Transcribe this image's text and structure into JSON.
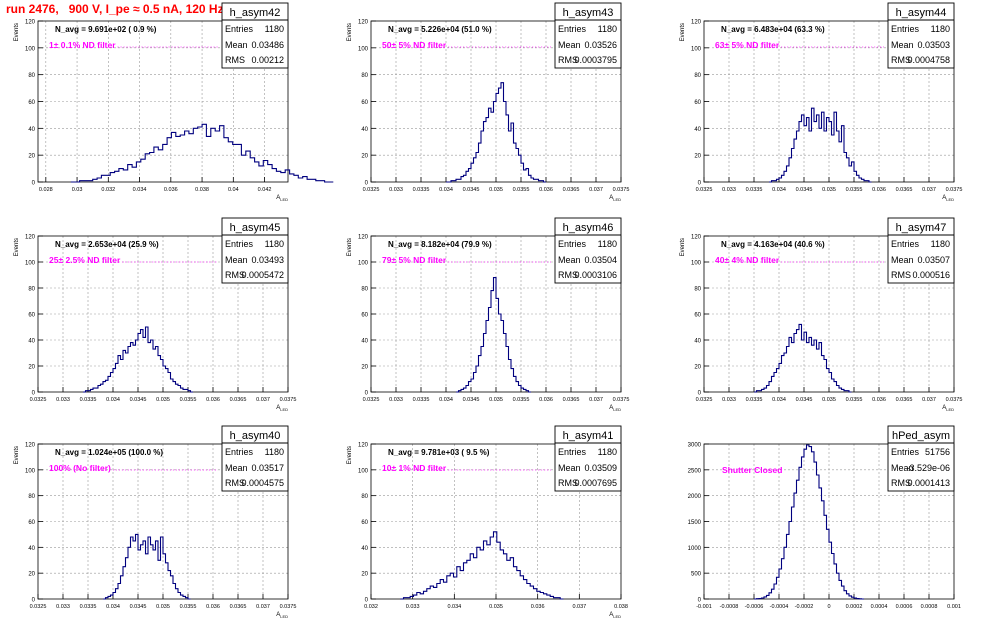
{
  "title": "run 2476,   900 V, I_pe ≈ 0.5 nA, 120 Hz",
  "colors": {
    "title": "#ff0000",
    "annotation": "#ff00ff",
    "line": "#00007f",
    "grid": "#999999"
  },
  "chart_data": [
    {
      "type": "bar",
      "name": "h_asym42",
      "stats": {
        "entries": "1180",
        "mean": "0.03486",
        "rms": "0.00212"
      },
      "n_avg": "N_avg = 9.691e+02 ( 0.9 %)",
      "annotation": "1± 0.1% ND filter",
      "ylabel": "Events",
      "xlabel": "A_LED",
      "xlim": [
        0.0275,
        0.0435
      ],
      "ylim": [
        0,
        120
      ],
      "xticks": [
        "0.028",
        "0.03",
        "0.032",
        "0.034",
        "0.036",
        "0.038",
        "0.04",
        "0.042"
      ],
      "xtick_values": [
        0.028,
        0.03,
        0.032,
        0.034,
        0.036,
        0.038,
        0.04,
        0.042
      ],
      "yticks": [
        0,
        20,
        40,
        60,
        80,
        100,
        120
      ],
      "x_start": 0.0296,
      "bin_width": 0.00028,
      "values": [
        0,
        0,
        1,
        1,
        1,
        2,
        3,
        5,
        5,
        7,
        8,
        10,
        9,
        13,
        11,
        15,
        17,
        21,
        22,
        26,
        24,
        28,
        33,
        37,
        34,
        35,
        38,
        36,
        40,
        41,
        43,
        34,
        40,
        38,
        42,
        33,
        30,
        28,
        28,
        20,
        23,
        18,
        15,
        12,
        16,
        13,
        10,
        8,
        7,
        9,
        6,
        5,
        3,
        4,
        2,
        2,
        1,
        1,
        0,
        0
      ]
    },
    {
      "type": "bar",
      "name": "h_asym43",
      "stats": {
        "entries": "1180",
        "mean": "0.03526",
        "rms": "0.0003795"
      },
      "n_avg": "N_avg = 5.226e+04 (51.0 %)",
      "annotation": "50± 5% ND filter",
      "ylabel": "Events",
      "xlabel": "A_LED",
      "xlim": [
        0.0325,
        0.0375
      ],
      "ylim": [
        0,
        120
      ],
      "xticks": [
        "0.0325",
        "0.033",
        "0.0335",
        "0.034",
        "0.0345",
        "0.035",
        "0.0355",
        "0.036",
        "0.0365",
        "0.037",
        "0.0375"
      ],
      "xtick_values": [
        0.0325,
        0.033,
        0.0335,
        0.034,
        0.0345,
        0.035,
        0.0355,
        0.036,
        0.0365,
        0.037,
        0.0375
      ],
      "yticks": [
        0,
        20,
        40,
        60,
        80,
        100,
        120
      ],
      "x_start": 0.034,
      "bin_width": 5e-05,
      "values": [
        0,
        0,
        1,
        1,
        2,
        2,
        4,
        5,
        8,
        10,
        14,
        18,
        22,
        29,
        38,
        45,
        48,
        55,
        52,
        60,
        66,
        70,
        74,
        60,
        50,
        38,
        44,
        29,
        25,
        20,
        14,
        9,
        10,
        5,
        3,
        2,
        2,
        1,
        1,
        0
      ]
    },
    {
      "type": "bar",
      "name": "h_asym44",
      "stats": {
        "entries": "1180",
        "mean": "0.03503",
        "rms": "0.0004758"
      },
      "n_avg": "N_avg = 6.483e+04 (63.3 %)",
      "annotation": "63± 5% ND filter",
      "ylabel": "Events",
      "xlabel": "A_LED",
      "xlim": [
        0.0325,
        0.0375
      ],
      "ylim": [
        0,
        120
      ],
      "xticks": [
        "0.0325",
        "0.033",
        "0.0335",
        "0.034",
        "0.0345",
        "0.035",
        "0.0355",
        "0.036",
        "0.0365",
        "0.037",
        "0.0375"
      ],
      "xtick_values": [
        0.0325,
        0.033,
        0.0335,
        0.034,
        0.0345,
        0.035,
        0.0355,
        0.036,
        0.0365,
        0.037,
        0.0375
      ],
      "yticks": [
        0,
        20,
        40,
        60,
        80,
        100,
        120
      ],
      "x_start": 0.0338,
      "bin_width": 5e-05,
      "values": [
        0,
        1,
        1,
        2,
        3,
        5,
        8,
        12,
        18,
        25,
        32,
        38,
        45,
        50,
        42,
        48,
        38,
        55,
        45,
        50,
        40,
        52,
        38,
        48,
        45,
        35,
        52,
        38,
        30,
        42,
        22,
        18,
        12,
        15,
        8,
        5,
        3,
        2,
        1,
        1,
        0
      ]
    },
    {
      "type": "bar",
      "name": "h_asym45",
      "stats": {
        "entries": "1180",
        "mean": "0.03493",
        "rms": "0.0005472"
      },
      "n_avg": "N_avg = 2.653e+04 (25.9 %)",
      "annotation": "25± 2.5% ND filter",
      "ylabel": "Events",
      "xlabel": "A_LED",
      "xlim": [
        0.0325,
        0.0375
      ],
      "ylim": [
        0,
        120
      ],
      "xticks": [
        "0.0325",
        "0.033",
        "0.0335",
        "0.034",
        "0.0345",
        "0.035",
        "0.0355",
        "0.036",
        "0.0365",
        "0.037",
        "0.0375"
      ],
      "xtick_values": [
        0.0325,
        0.033,
        0.0335,
        0.034,
        0.0345,
        0.035,
        0.0355,
        0.036,
        0.0365,
        0.037,
        0.0375
      ],
      "yticks": [
        0,
        20,
        40,
        60,
        80,
        100,
        120
      ],
      "x_start": 0.0334,
      "bin_width": 5e-05,
      "values": [
        0,
        1,
        1,
        2,
        3,
        3,
        5,
        6,
        8,
        9,
        12,
        15,
        18,
        22,
        28,
        25,
        32,
        30,
        35,
        38,
        36,
        40,
        45,
        48,
        42,
        50,
        38,
        40,
        33,
        35,
        28,
        25,
        20,
        18,
        15,
        10,
        8,
        6,
        5,
        3,
        2,
        2,
        1,
        0
      ]
    },
    {
      "type": "bar",
      "name": "h_asym46",
      "stats": {
        "entries": "1180",
        "mean": "0.03504",
        "rms": "0.0003106"
      },
      "n_avg": "N_avg = 8.182e+04 (79.9 %)",
      "annotation": "79± 5% ND filter",
      "ylabel": "Events",
      "xlabel": "A_LED",
      "xlim": [
        0.0325,
        0.0375
      ],
      "ylim": [
        0,
        120
      ],
      "xticks": [
        "0.0325",
        "0.033",
        "0.0335",
        "0.034",
        "0.0345",
        "0.035",
        "0.0355",
        "0.036",
        "0.0365",
        "0.037",
        "0.0375"
      ],
      "xtick_values": [
        0.0325,
        0.033,
        0.0335,
        0.034,
        0.0345,
        0.035,
        0.0355,
        0.036,
        0.0365,
        0.037,
        0.0375
      ],
      "yticks": [
        0,
        20,
        40,
        60,
        80,
        100,
        120
      ],
      "x_start": 0.0342,
      "bin_width": 5e-05,
      "values": [
        0,
        1,
        2,
        3,
        5,
        8,
        10,
        15,
        20,
        28,
        35,
        45,
        55,
        65,
        78,
        88,
        72,
        60,
        55,
        45,
        35,
        25,
        18,
        12,
        8,
        5,
        3,
        2,
        1,
        0
      ]
    },
    {
      "type": "bar",
      "name": "h_asym47",
      "stats": {
        "entries": "1180",
        "mean": "0.03507",
        "rms": "0.000516"
      },
      "n_avg": "N_avg = 4.163e+04 (40.6 %)",
      "annotation": "40± 4% ND filter",
      "ylabel": "Events",
      "xlabel": "A_LED",
      "xlim": [
        0.0325,
        0.0375
      ],
      "ylim": [
        0,
        120
      ],
      "xticks": [
        "0.0325",
        "0.033",
        "0.0335",
        "0.034",
        "0.0345",
        "0.035",
        "0.0355",
        "0.036",
        "0.0365",
        "0.037",
        "0.0375"
      ],
      "xtick_values": [
        0.0325,
        0.033,
        0.0335,
        0.034,
        0.0345,
        0.035,
        0.0355,
        0.036,
        0.0365,
        0.037,
        0.0375
      ],
      "yticks": [
        0,
        20,
        40,
        60,
        80,
        100,
        120
      ],
      "x_start": 0.0335,
      "bin_width": 5e-05,
      "values": [
        0,
        1,
        1,
        2,
        3,
        5,
        8,
        12,
        15,
        18,
        22,
        28,
        30,
        35,
        42,
        38,
        45,
        48,
        52,
        40,
        46,
        38,
        42,
        36,
        40,
        33,
        38,
        28,
        25,
        18,
        15,
        10,
        8,
        5,
        3,
        2,
        1,
        1,
        0
      ]
    },
    {
      "type": "bar",
      "name": "h_asym40",
      "stats": {
        "entries": "1180",
        "mean": "0.03517",
        "rms": "0.0004575"
      },
      "n_avg": "N_avg = 1.024e+05 (100.0 %)",
      "annotation": "100% (No filter)",
      "ylabel": "Events",
      "xlabel": "A_LED",
      "xlim": [
        0.0325,
        0.0375
      ],
      "ylim": [
        0,
        120
      ],
      "xticks": [
        "0.0325",
        "0.033",
        "0.0335",
        "0.034",
        "0.0345",
        "0.035",
        "0.0355",
        "0.036",
        "0.0365",
        "0.037",
        "0.0375"
      ],
      "xtick_values": [
        0.0325,
        0.033,
        0.0335,
        0.034,
        0.0345,
        0.035,
        0.0355,
        0.036,
        0.0365,
        0.037,
        0.0375
      ],
      "yticks": [
        0,
        20,
        40,
        60,
        80,
        100,
        120
      ],
      "x_start": 0.0338,
      "bin_width": 5e-05,
      "values": [
        0,
        1,
        2,
        3,
        5,
        8,
        12,
        18,
        25,
        32,
        40,
        48,
        45,
        50,
        38,
        42,
        45,
        35,
        48,
        42,
        38,
        45,
        30,
        48,
        35,
        28,
        22,
        18,
        12,
        8,
        5,
        3,
        2,
        1,
        0
      ]
    },
    {
      "type": "bar",
      "name": "h_asym41",
      "stats": {
        "entries": "1180",
        "mean": "0.03509",
        "rms": "0.0007695"
      },
      "n_avg": "N_avg = 9.781e+03 ( 9.5 %)",
      "annotation": "10± 1% ND filter",
      "ylabel": "Events",
      "xlabel": "A_LED",
      "xlim": [
        0.032,
        0.038
      ],
      "ylim": [
        0,
        120
      ],
      "xticks": [
        "0.032",
        "0.033",
        "0.034",
        "0.035",
        "0.036",
        "0.037",
        "0.038"
      ],
      "xtick_values": [
        0.032,
        0.033,
        0.034,
        0.035,
        0.036,
        0.037,
        0.038
      ],
      "yticks": [
        0,
        20,
        40,
        60,
        80,
        100,
        120
      ],
      "x_start": 0.0327,
      "bin_width": 8e-05,
      "values": [
        0,
        1,
        1,
        2,
        3,
        5,
        4,
        6,
        8,
        10,
        9,
        12,
        15,
        13,
        18,
        20,
        17,
        25,
        22,
        28,
        30,
        35,
        32,
        40,
        38,
        45,
        42,
        48,
        52,
        44,
        38,
        35,
        30,
        32,
        25,
        22,
        18,
        15,
        12,
        10,
        8,
        6,
        5,
        4,
        3,
        2,
        1,
        1,
        0
      ]
    },
    {
      "type": "bar",
      "name": "hPed_asym",
      "stats": {
        "entries": "51756",
        "mean": "-3.529e-06",
        "rms": "0.0001413"
      },
      "n_avg": "",
      "annotation": "Shutter Closed",
      "ylabel": "",
      "xlabel": "",
      "xlim": [
        -0.001,
        0.001
      ],
      "ylim": [
        0,
        3000
      ],
      "xticks": [
        "-0.001",
        "-0.0008",
        "-0.0006",
        "-0.0004",
        "-0.0002",
        "0",
        "0.0002",
        "0.0004",
        "0.0006",
        "0.0008",
        "0.001"
      ],
      "xtick_values": [
        -0.001,
        -0.0008,
        -0.0006,
        -0.0004,
        -0.0002,
        0,
        0.0002,
        0.0004,
        0.0006,
        0.0008,
        0.001
      ],
      "yticks": [
        0,
        500,
        1000,
        1500,
        2000,
        2500,
        3000
      ],
      "x_start": -0.0006,
      "bin_width": 2e-05,
      "values": [
        0,
        5,
        10,
        20,
        40,
        70,
        120,
        190,
        290,
        420,
        580,
        780,
        1000,
        1250,
        1500,
        1780,
        2050,
        2300,
        2550,
        2750,
        2900,
        2980,
        2950,
        2850,
        2650,
        2400,
        2150,
        1900,
        1620,
        1350,
        1100,
        880,
        680,
        500,
        360,
        250,
        160,
        100,
        60,
        35,
        18,
        8,
        3,
        0
      ]
    }
  ]
}
